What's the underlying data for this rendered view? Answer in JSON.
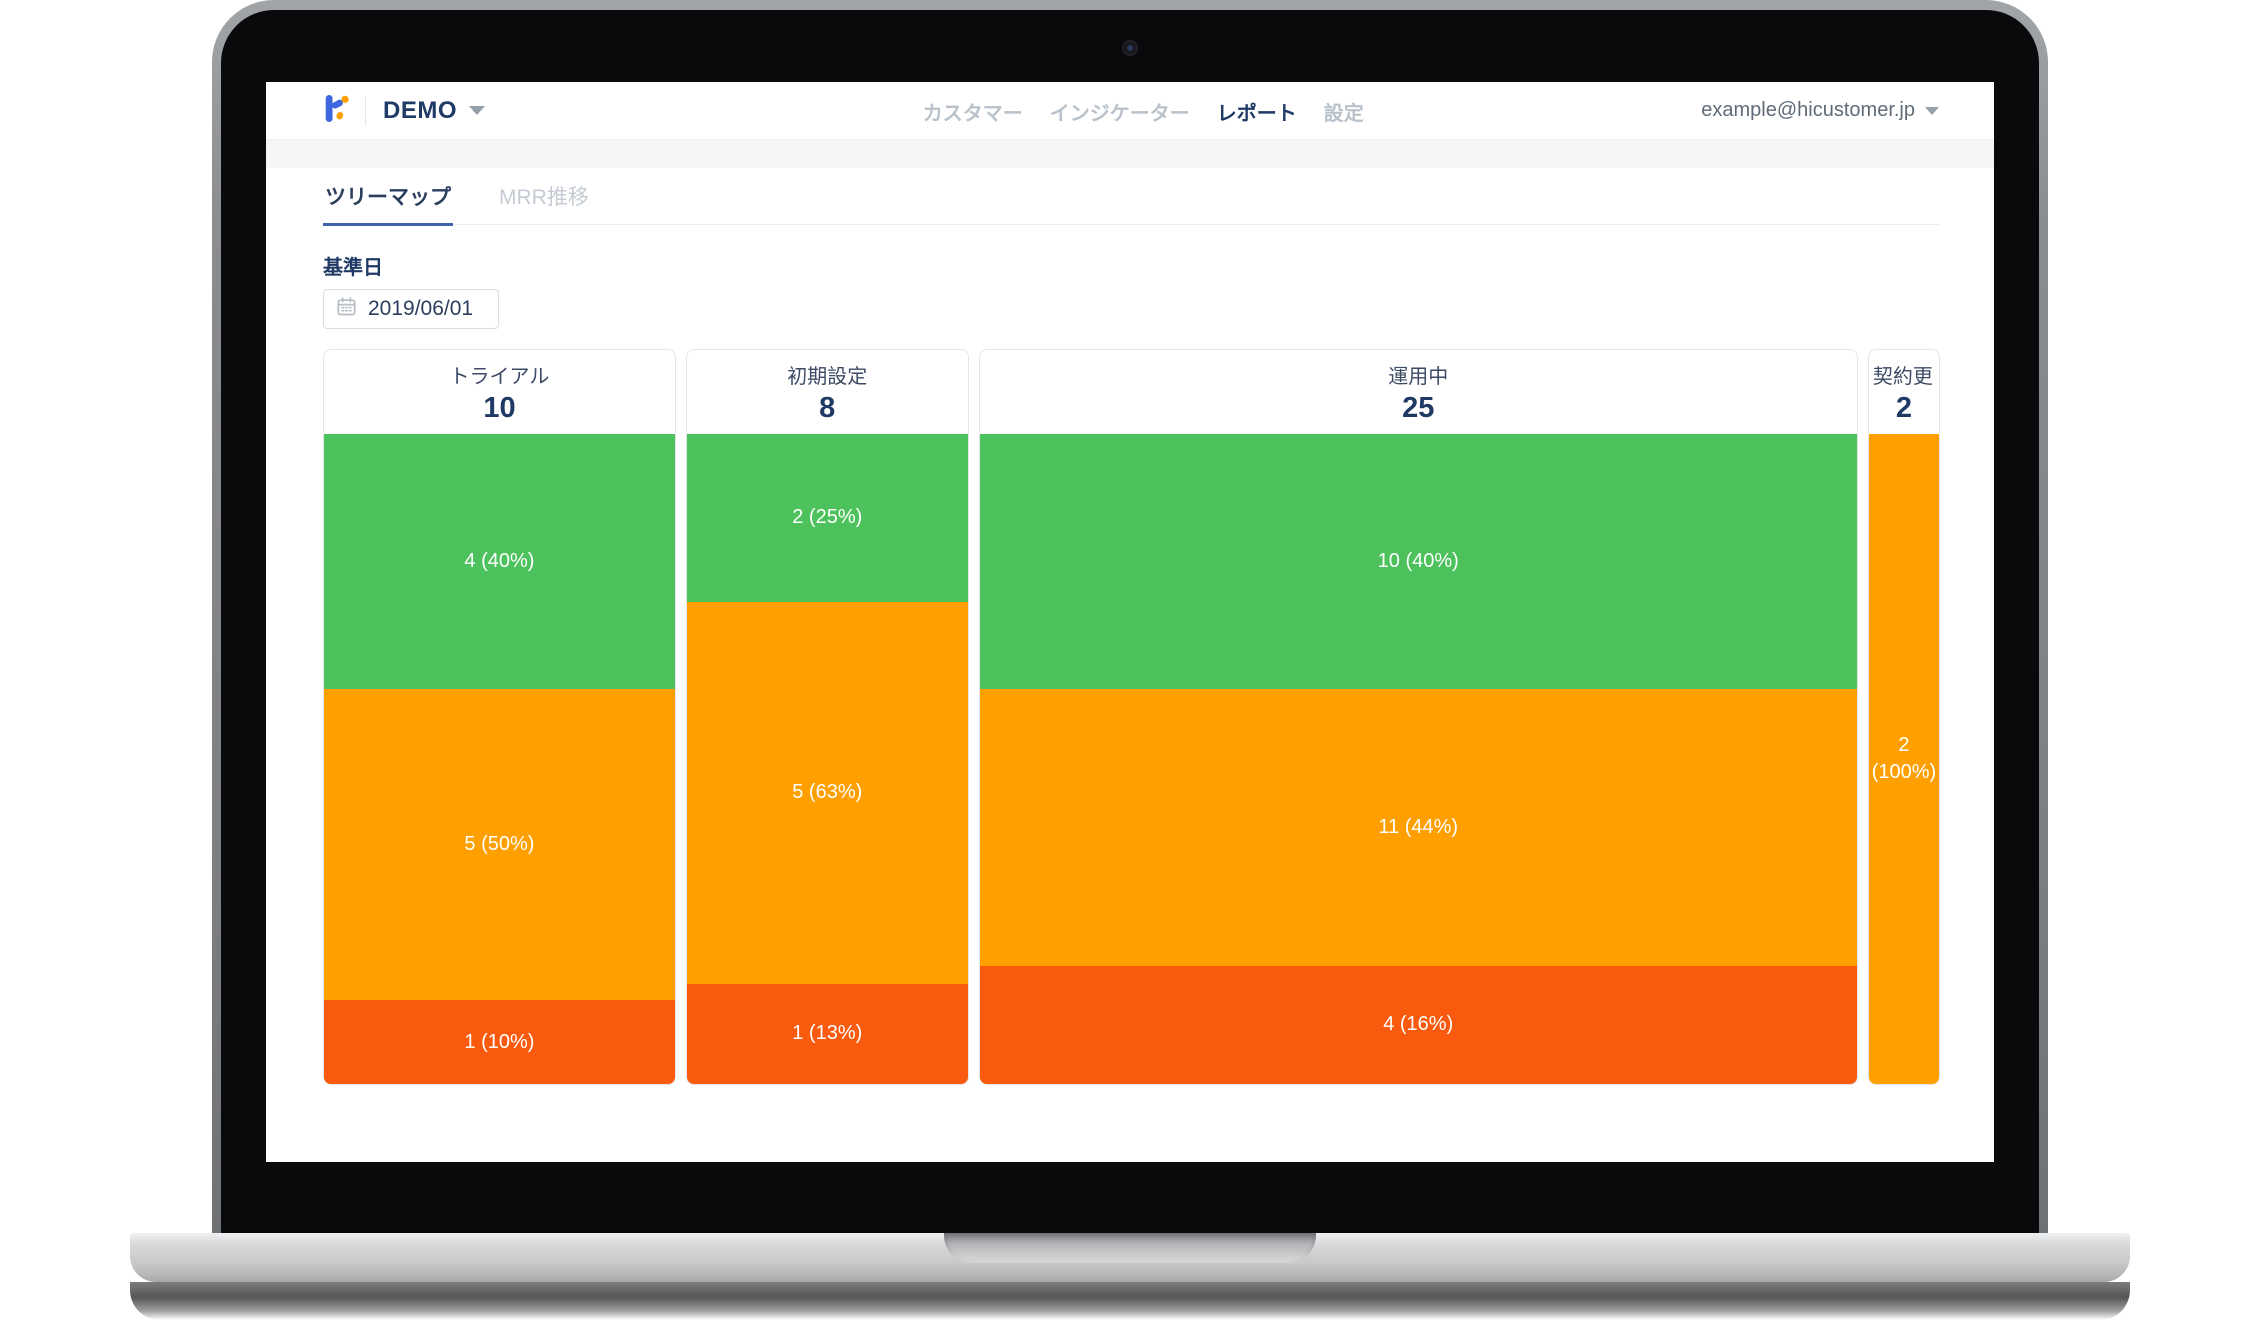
{
  "header": {
    "workspace": "DEMO",
    "nav": [
      {
        "label": "カスタマー",
        "active": false
      },
      {
        "label": "インジケーター",
        "active": false
      },
      {
        "label": "レポート",
        "active": true
      },
      {
        "label": "設定",
        "active": false
      }
    ],
    "account_email": "example@hicustomer.jp"
  },
  "tabs": [
    {
      "label": "ツリーマップ",
      "active": true
    },
    {
      "label": "MRR推移",
      "active": false
    }
  ],
  "filter": {
    "label": "基準日",
    "date_value": "2019/06/01",
    "icon": "calendar-icon"
  },
  "palette": {
    "green": "#4dc25c",
    "orange": "#ffa000",
    "red": "#f95a0e",
    "navy": "#203a66",
    "tab_underline": "#3f62ae",
    "logo_blue": "#3f66dd",
    "logo_orange": "#ffa000"
  },
  "chart_data": {
    "type": "marimekko-treemap",
    "title": "ツリーマップ",
    "note": "column width proportional to count, segment height = percent",
    "columns": [
      {
        "title": "トライアル",
        "count": 10,
        "segments": [
          {
            "value": 4,
            "percent": 40,
            "label": "4 (40%)",
            "color": "green"
          },
          {
            "value": 5,
            "percent": 50,
            "label": "5 (50%)",
            "color": "orange"
          },
          {
            "value": 1,
            "percent": 10,
            "label": "1 (10%)",
            "color": "red"
          }
        ]
      },
      {
        "title": "初期設定",
        "count": 8,
        "segments": [
          {
            "value": 2,
            "percent": 25,
            "label": "2 (25%)",
            "color": "green"
          },
          {
            "value": 5,
            "percent": 63,
            "label": "5 (63%)",
            "color": "orange"
          },
          {
            "value": 1,
            "percent": 13,
            "label": "1 (13%)",
            "color": "red"
          }
        ]
      },
      {
        "title": "運用中",
        "count": 25,
        "segments": [
          {
            "value": 10,
            "percent": 40,
            "label": "10 (40%)",
            "color": "green"
          },
          {
            "value": 11,
            "percent": 44,
            "label": "11 (44%)",
            "color": "orange"
          },
          {
            "value": 4,
            "percent": 16,
            "label": "4 (16%)",
            "color": "red"
          }
        ]
      },
      {
        "title": "契約更…",
        "count": 2,
        "segments": [
          {
            "value": 2,
            "percent": 100,
            "label": "2 (100%)",
            "color": "orange"
          }
        ]
      }
    ]
  }
}
